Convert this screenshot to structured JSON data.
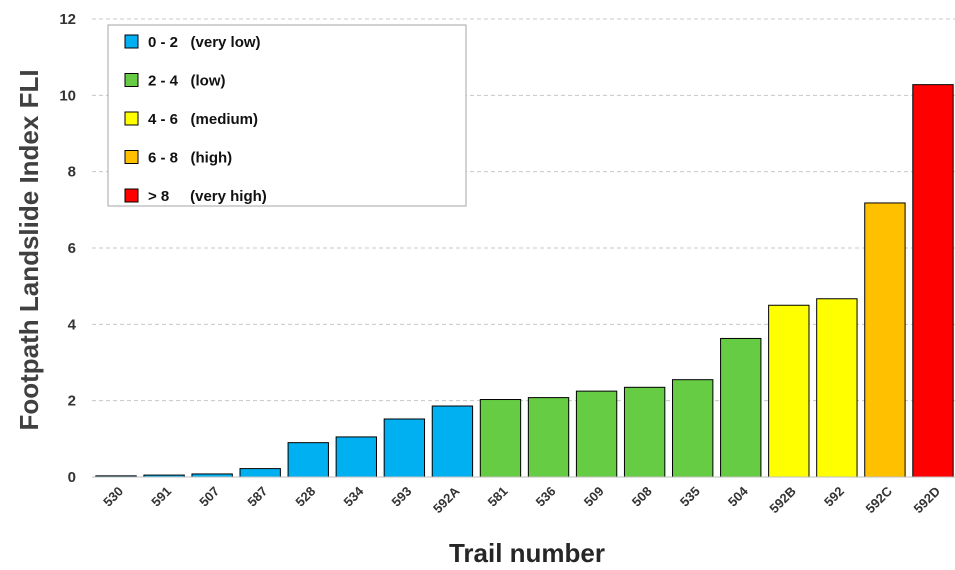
{
  "chart_data": {
    "type": "bar",
    "title": "",
    "xlabel": "Trail number",
    "ylabel": "Footpath Landslide Index FLI",
    "ylim": [
      0,
      12
    ],
    "yticks": [
      "0",
      "2",
      "4",
      "6",
      "8",
      "10",
      "12"
    ],
    "grid": true,
    "legend_position": "top-left",
    "categories": [
      "530",
      "591",
      "507",
      "587",
      "528",
      "534",
      "593",
      "592A",
      "581",
      "536",
      "509",
      "508",
      "535",
      "504",
      "592B",
      "592",
      "592C",
      "592D"
    ],
    "values": [
      0.03,
      0.05,
      0.08,
      0.22,
      0.9,
      1.05,
      1.52,
      1.86,
      2.03,
      2.08,
      2.25,
      2.35,
      2.55,
      3.63,
      4.5,
      4.67,
      7.18,
      10.28
    ],
    "classes": [
      {
        "label": "0 - 2   (very low)",
        "color": "#00B0F0",
        "min": 0,
        "max": 2
      },
      {
        "label": "2 - 4   (low)",
        "color": "#66CC44",
        "min": 2,
        "max": 4
      },
      {
        "label": "4 - 6   (medium)",
        "color": "#FFFF00",
        "min": 4,
        "max": 6
      },
      {
        "label": "6 - 8   (high)",
        "color": "#FFC000",
        "min": 6,
        "max": 8
      },
      {
        "label": "> 8     (very high)",
        "color": "#FF0000",
        "min": 8,
        "max": 100
      }
    ]
  }
}
